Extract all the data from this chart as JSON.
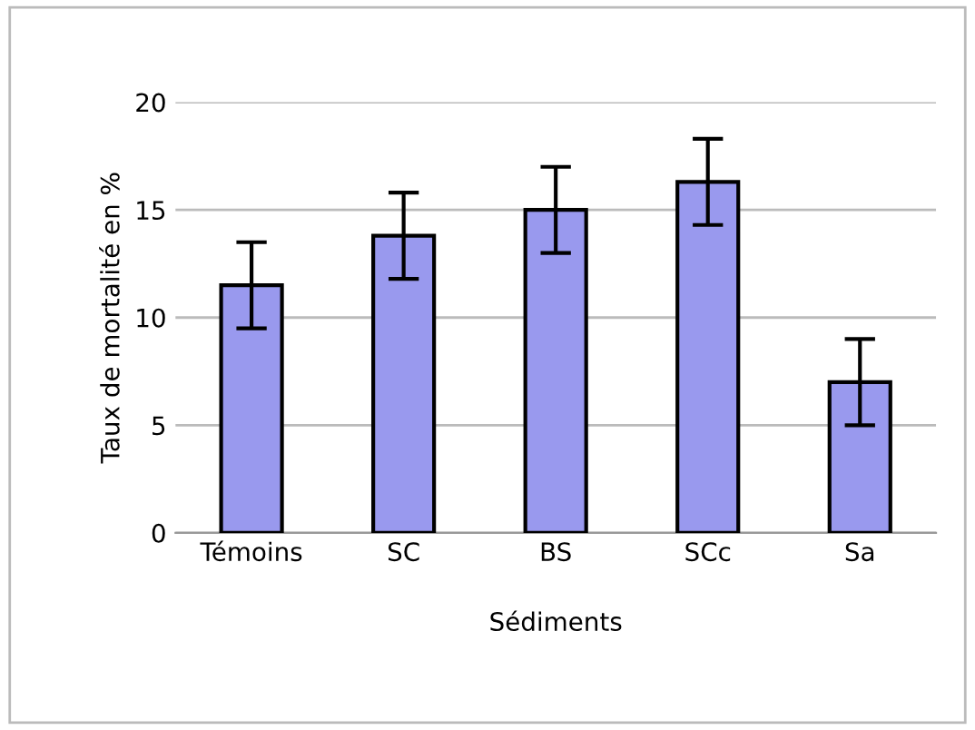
{
  "chart_data": {
    "type": "bar",
    "xlabel": "Sédiments",
    "ylabel": "Taux de mortalité en %",
    "categories": [
      "Témoins",
      "SC",
      "BS",
      "SCc",
      "Sa"
    ],
    "values": [
      11.5,
      13.8,
      15.0,
      16.3,
      7.0
    ],
    "errors": [
      2,
      2,
      2,
      2,
      2
    ],
    "color": "#9999ee",
    "ylim": [
      0,
      20
    ],
    "yticks": [
      0,
      5,
      10,
      15,
      20
    ],
    "grid": "y",
    "legend": false
  }
}
